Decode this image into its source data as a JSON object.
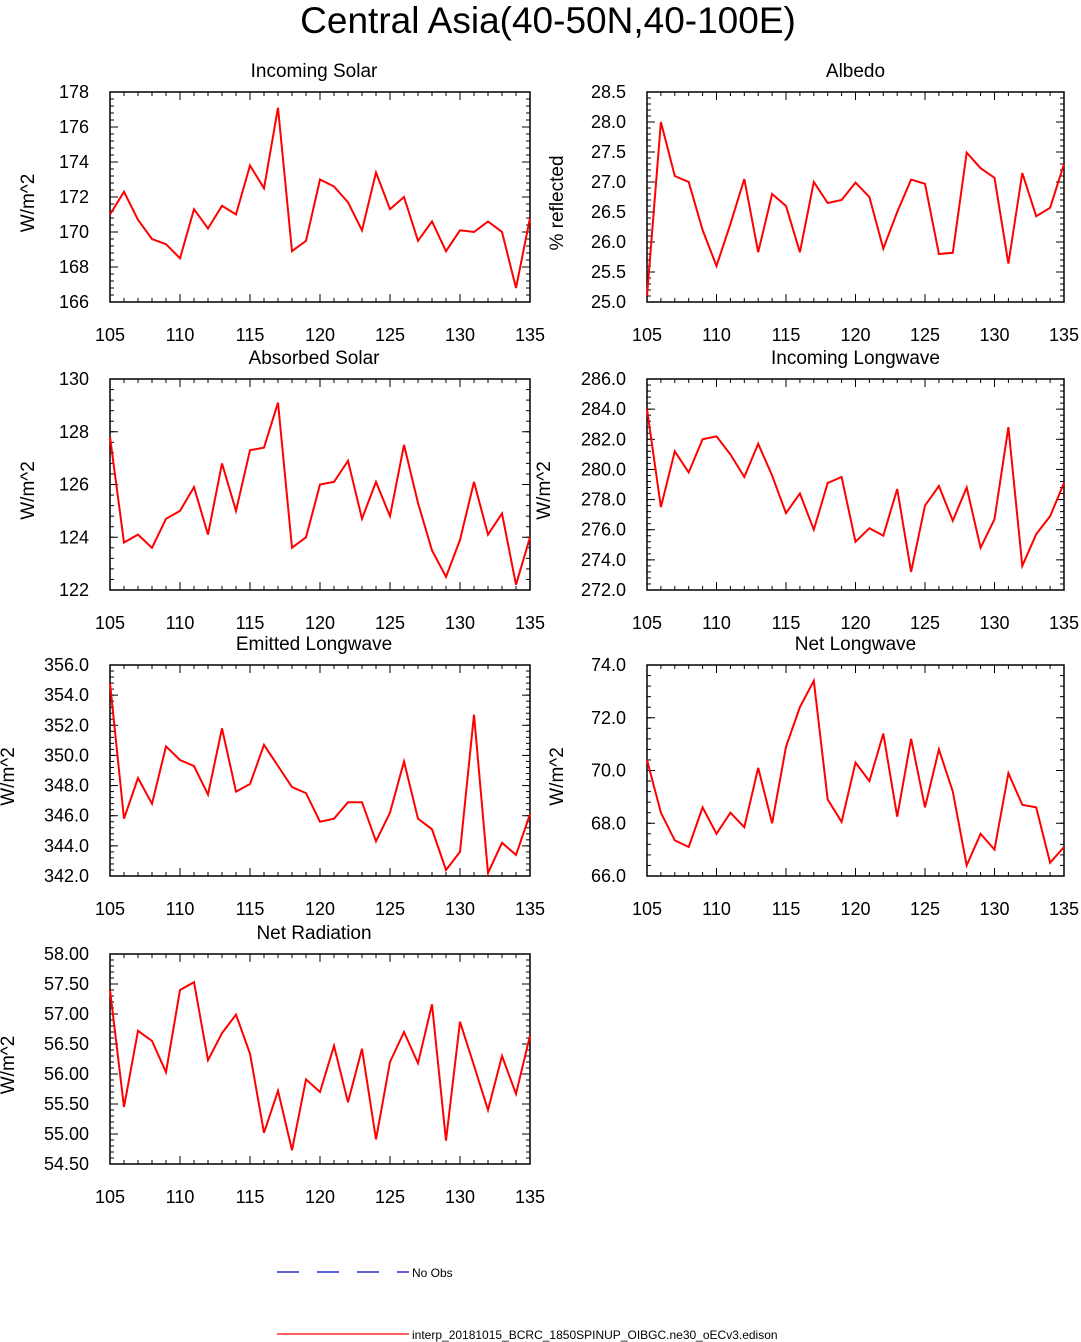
{
  "figure": {
    "title": "Central Asia(40-50N,40-100E)"
  },
  "legend": {
    "obs_label": "No Obs",
    "obs_color": "#0000cc",
    "model_label": "interp_20181015_BCRC_1850SPINUP_OIBGC.ne30_oECv3.edison",
    "model_color": "#ff0000"
  },
  "chart_data": [
    {
      "type": "line",
      "title": "Incoming Solar",
      "ylabel": "W/m^2",
      "xlim": [
        105,
        135
      ],
      "ylim": [
        166,
        178
      ],
      "x_ticks": [
        105,
        110,
        115,
        120,
        125,
        130,
        135
      ],
      "y_ticks": [
        "166",
        "168",
        "170",
        "172",
        "174",
        "176",
        "178"
      ],
      "y_minor_step": 0.4,
      "x": [
        105,
        106,
        107,
        108,
        109,
        110,
        111,
        112,
        113,
        114,
        115,
        116,
        117,
        118,
        119,
        120,
        121,
        122,
        123,
        124,
        125,
        126,
        127,
        128,
        129,
        130,
        131,
        132,
        133,
        134,
        135
      ],
      "series": [
        {
          "color": "#ff0000",
          "values": [
            171.0,
            172.3,
            170.7,
            169.6,
            169.3,
            168.5,
            171.3,
            170.2,
            171.5,
            171.0,
            173.8,
            172.5,
            177.1,
            168.9,
            169.5,
            173.0,
            172.6,
            171.7,
            170.1,
            173.4,
            171.3,
            172.0,
            169.5,
            170.6,
            168.9,
            170.1,
            170.0,
            170.6,
            170.0,
            166.8,
            170.8
          ]
        }
      ]
    },
    {
      "type": "line",
      "title": "Albedo",
      "ylabel": "% reflected",
      "xlim": [
        105,
        135
      ],
      "ylim": [
        25.0,
        28.5
      ],
      "x_ticks": [
        105,
        110,
        115,
        120,
        125,
        130,
        135
      ],
      "y_ticks": [
        "25.0",
        "25.5",
        "26.0",
        "26.5",
        "27.0",
        "27.5",
        "28.0",
        "28.5"
      ],
      "y_minor_step": 0.1,
      "x": [
        105,
        106,
        107,
        108,
        109,
        110,
        111,
        112,
        113,
        114,
        115,
        116,
        117,
        118,
        119,
        120,
        121,
        122,
        123,
        124,
        125,
        126,
        127,
        128,
        129,
        130,
        131,
        132,
        133,
        134,
        135
      ],
      "series": [
        {
          "color": "#ff0000",
          "values": [
            25.1,
            28.0,
            27.1,
            27.0,
            26.2,
            25.6,
            26.3,
            27.05,
            25.83,
            26.8,
            26.6,
            25.83,
            27.0,
            26.65,
            26.7,
            26.99,
            26.75,
            25.89,
            26.5,
            27.04,
            26.97,
            25.8,
            25.82,
            27.49,
            27.23,
            27.07,
            25.64,
            27.15,
            26.43,
            26.57,
            27.3
          ]
        }
      ]
    },
    {
      "type": "line",
      "title": "Absorbed Solar",
      "ylabel": "W/m^2",
      "xlim": [
        105,
        135
      ],
      "ylim": [
        122,
        130
      ],
      "x_ticks": [
        105,
        110,
        115,
        120,
        125,
        130,
        135
      ],
      "y_ticks": [
        "122",
        "124",
        "126",
        "128",
        "130"
      ],
      "y_minor_step": 0.4,
      "x": [
        105,
        106,
        107,
        108,
        109,
        110,
        111,
        112,
        113,
        114,
        115,
        116,
        117,
        118,
        119,
        120,
        121,
        122,
        123,
        124,
        125,
        126,
        127,
        128,
        129,
        130,
        131,
        132,
        133,
        134,
        135
      ],
      "series": [
        {
          "color": "#ff0000",
          "values": [
            127.8,
            123.8,
            124.1,
            123.6,
            124.7,
            125.0,
            125.9,
            124.1,
            126.8,
            125.0,
            127.3,
            127.4,
            129.1,
            123.6,
            124.0,
            126.0,
            126.1,
            126.9,
            124.7,
            126.1,
            124.8,
            127.5,
            125.3,
            123.5,
            122.5,
            123.9,
            126.1,
            124.1,
            124.9,
            122.2,
            124.0
          ]
        }
      ]
    },
    {
      "type": "line",
      "title": "Incoming Longwave",
      "ylabel": "W/m^2",
      "xlim": [
        105,
        135
      ],
      "ylim": [
        272.0,
        286.0
      ],
      "x_ticks": [
        105,
        110,
        115,
        120,
        125,
        130,
        135
      ],
      "y_ticks": [
        "272.0",
        "274.0",
        "276.0",
        "278.0",
        "280.0",
        "282.0",
        "284.0",
        "286.0"
      ],
      "y_minor_step": 0.4,
      "x": [
        105,
        106,
        107,
        108,
        109,
        110,
        111,
        112,
        113,
        114,
        115,
        116,
        117,
        118,
        119,
        120,
        121,
        122,
        123,
        124,
        125,
        126,
        127,
        128,
        129,
        130,
        131,
        132,
        133,
        134,
        135
      ],
      "series": [
        {
          "color": "#ff0000",
          "values": [
            284.0,
            277.5,
            281.2,
            279.8,
            282.0,
            282.2,
            281.0,
            279.5,
            281.7,
            279.6,
            277.1,
            278.4,
            276.0,
            279.1,
            279.5,
            275.2,
            276.1,
            275.6,
            278.7,
            273.2,
            277.6,
            278.9,
            276.6,
            278.8,
            274.8,
            276.7,
            282.8,
            273.6,
            275.7,
            276.9,
            279.1
          ]
        }
      ]
    },
    {
      "type": "line",
      "title": "Emitted Longwave",
      "ylabel": "W/m^2",
      "xlim": [
        105,
        135
      ],
      "ylim": [
        342.0,
        356.0
      ],
      "x_ticks": [
        105,
        110,
        115,
        120,
        125,
        130,
        135
      ],
      "y_ticks": [
        "342.0",
        "344.0",
        "346.0",
        "348.0",
        "350.0",
        "352.0",
        "354.0",
        "356.0"
      ],
      "y_minor_step": 0.4,
      "x": [
        105,
        106,
        107,
        108,
        109,
        110,
        111,
        112,
        113,
        114,
        115,
        116,
        117,
        118,
        119,
        120,
        121,
        122,
        123,
        124,
        125,
        126,
        127,
        128,
        129,
        130,
        131,
        132,
        133,
        134,
        135
      ],
      "series": [
        {
          "color": "#ff0000",
          "values": [
            354.8,
            345.8,
            348.5,
            346.8,
            350.6,
            349.7,
            349.3,
            347.4,
            351.8,
            347.6,
            348.1,
            350.7,
            349.3,
            347.9,
            347.5,
            345.6,
            345.8,
            346.9,
            346.9,
            344.3,
            346.2,
            349.6,
            345.8,
            345.1,
            342.4,
            343.6,
            352.7,
            342.2,
            344.2,
            343.4,
            346.1
          ]
        }
      ]
    },
    {
      "type": "line",
      "title": "Net Longwave",
      "ylabel": "W/m^2",
      "xlim": [
        105,
        135
      ],
      "ylim": [
        66.0,
        74.0
      ],
      "x_ticks": [
        105,
        110,
        115,
        120,
        125,
        130,
        135
      ],
      "y_ticks": [
        "66.0",
        "68.0",
        "70.0",
        "72.0",
        "74.0"
      ],
      "y_minor_step": 0.4,
      "x": [
        105,
        106,
        107,
        108,
        109,
        110,
        111,
        112,
        113,
        114,
        115,
        116,
        117,
        118,
        119,
        120,
        121,
        122,
        123,
        124,
        125,
        126,
        127,
        128,
        129,
        130,
        131,
        132,
        133,
        134,
        135
      ],
      "series": [
        {
          "color": "#ff0000",
          "values": [
            70.4,
            68.4,
            67.35,
            67.1,
            68.6,
            67.6,
            68.4,
            67.85,
            70.1,
            68.0,
            70.9,
            72.4,
            73.4,
            68.9,
            68.05,
            70.3,
            69.6,
            71.4,
            68.25,
            71.2,
            68.6,
            70.8,
            69.2,
            66.4,
            67.6,
            67.0,
            69.9,
            68.7,
            68.6,
            66.5,
            67.1
          ]
        }
      ]
    },
    {
      "type": "line",
      "title": "Net Radiation",
      "ylabel": "W/m^2",
      "xlim": [
        105,
        135
      ],
      "ylim": [
        54.5,
        58.0
      ],
      "x_ticks": [
        105,
        110,
        115,
        120,
        125,
        130,
        135
      ],
      "y_ticks": [
        "54.50",
        "55.00",
        "55.50",
        "56.00",
        "56.50",
        "57.00",
        "57.50",
        "58.00"
      ],
      "y_minor_step": 0.1,
      "x": [
        105,
        106,
        107,
        108,
        109,
        110,
        111,
        112,
        113,
        114,
        115,
        116,
        117,
        118,
        119,
        120,
        121,
        122,
        123,
        124,
        125,
        126,
        127,
        128,
        129,
        130,
        131,
        132,
        133,
        134,
        135
      ],
      "series": [
        {
          "color": "#ff0000",
          "values": [
            57.4,
            55.45,
            56.72,
            56.55,
            56.03,
            57.4,
            57.53,
            56.23,
            56.68,
            56.99,
            56.34,
            55.02,
            55.72,
            54.73,
            55.91,
            55.7,
            56.47,
            55.53,
            56.42,
            54.91,
            56.2,
            56.7,
            56.18,
            57.16,
            54.89,
            56.87,
            56.14,
            55.4,
            56.3,
            55.67,
            56.64
          ]
        }
      ]
    }
  ]
}
